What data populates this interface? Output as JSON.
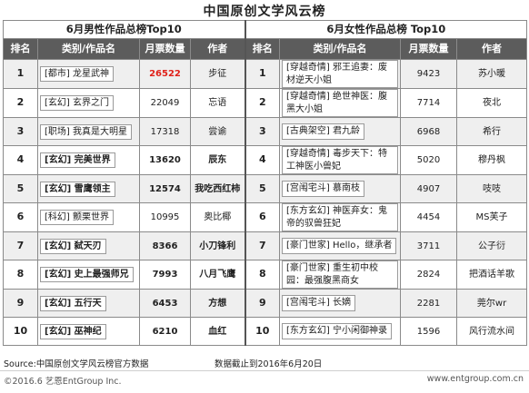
{
  "title": "中国原创文学风云榜",
  "male": {
    "subtitle": "6月男性作品总榜Top10",
    "headers": [
      "排名",
      "类别/作品名",
      "月票数量",
      "作者"
    ],
    "rows": [
      {
        "rank": "1",
        "title": "[都市] 龙星武神",
        "votes": "26522",
        "author": "步征"
      },
      {
        "rank": "2",
        "title": "[玄幻] 玄界之门",
        "votes": "22049",
        "author": "忘语"
      },
      {
        "rank": "3",
        "title": "[职场] 我真是大明星",
        "votes": "17318",
        "author": "尝谕"
      },
      {
        "rank": "4",
        "title": "[玄幻] 完美世界",
        "votes": "13620",
        "author": "辰东"
      },
      {
        "rank": "5",
        "title": "[玄幻] 雪鹰领主",
        "votes": "12574",
        "author": "我吃西红柿"
      },
      {
        "rank": "6",
        "title": "[科幻] 颤栗世界",
        "votes": "10995",
        "author": "奥比椰"
      },
      {
        "rank": "7",
        "title": "[玄幻] 弑天刃",
        "votes": "8366",
        "author": "小刀锋利"
      },
      {
        "rank": "8",
        "title": "[玄幻] 史上最强师兄",
        "votes": "7993",
        "author": "八月飞鹰"
      },
      {
        "rank": "9",
        "title": "[玄幻] 五行天",
        "votes": "6453",
        "author": "方想"
      },
      {
        "rank": "10",
        "title": "[玄幻] 巫神纪",
        "votes": "6210",
        "author": "血红"
      }
    ]
  },
  "female": {
    "subtitle": "6月女性作品总榜 Top10",
    "headers": [
      "排名",
      "类别/作品名",
      "月票数量",
      "作者"
    ],
    "rows": [
      {
        "rank": "1",
        "title": "[穿越奇情] 邪王追妻：废材逆天小姐",
        "votes": "9423",
        "author": "苏小暖"
      },
      {
        "rank": "2",
        "title": "[穿越奇情] 绝世神医：腹黑大小姐",
        "votes": "7714",
        "author": "夜北"
      },
      {
        "rank": "3",
        "title": "[古典架空] 君九龄",
        "votes": "6968",
        "author": "希行"
      },
      {
        "rank": "4",
        "title": "[穿越奇情] 毒步天下：特工神医小兽妃",
        "votes": "5020",
        "author": "穆丹枫"
      },
      {
        "rank": "5",
        "title": "[宫闱宅斗] 慕南枝",
        "votes": "4907",
        "author": "吱吱"
      },
      {
        "rank": "6",
        "title": "[东方玄幻] 神医弃女：鬼帝的驭兽狂妃",
        "votes": "4454",
        "author": "MS芙子"
      },
      {
        "rank": "7",
        "title": "[豪门世家] Hello，继承者",
        "votes": "3711",
        "author": "公子衍"
      },
      {
        "rank": "8",
        "title": "[豪门世家] 重生初中校园：最强腹黑商女",
        "votes": "2824",
        "author": "把酒话羊歌"
      },
      {
        "rank": "9",
        "title": "[宫闱宅斗] 长嫡",
        "votes": "2281",
        "author": "莞尔wr"
      },
      {
        "rank": "10",
        "title": "[东方玄幻] 宁小闲御神录",
        "votes": "1596",
        "author": "风行流水间"
      }
    ]
  },
  "footer": {
    "source": "Source:中国原创文学风云榜官方数据",
    "date_note": "数据截止到2016年6月20日",
    "copyright": "©2016.6 艺恩EntGroup Inc.",
    "website": "www.entgroup.com.cn"
  },
  "colors": {
    "header_bg": "#5c5c5c",
    "highlight": "#e0211a"
  }
}
